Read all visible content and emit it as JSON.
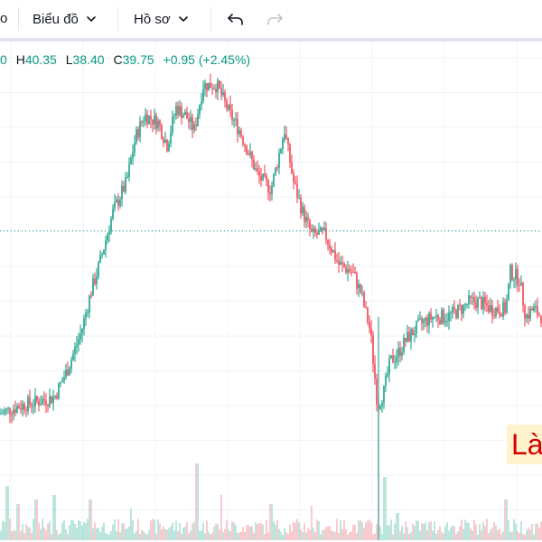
{
  "toolbar": {
    "cut_fragment": "o",
    "chart_menu_label": "Biểu đồ",
    "profile_menu_label": "Hồ sơ",
    "undo_icon": "undo-icon",
    "redo_icon": "redo-icon"
  },
  "legend": {
    "open_label": "",
    "open_value": "0",
    "high_label": "H",
    "high_value": "40.35",
    "low_label": "L",
    "low_value": "38.40",
    "close_label": "C",
    "close_value": "39.75",
    "change": "+0.95 (+2.45%)"
  },
  "corner_label": "Là",
  "colors": {
    "up": "#089981",
    "down": "#f23645",
    "grid": "#f0f3fa",
    "price_line": "#089981",
    "label_bg": "#fff3cd",
    "label_text": "#d50000"
  },
  "chart_data": {
    "type": "candlestick",
    "price_line": 39.75,
    "price_range": [
      24,
      50
    ],
    "trend": [
      [
        0,
        27.5
      ],
      [
        20,
        28.0
      ],
      [
        40,
        28.3
      ],
      [
        60,
        28.6
      ],
      [
        75,
        30.5
      ],
      [
        90,
        33.0
      ],
      [
        100,
        35.5
      ],
      [
        110,
        37.5
      ],
      [
        125,
        41.0
      ],
      [
        140,
        43.0
      ],
      [
        150,
        46.0
      ],
      [
        160,
        47.5
      ],
      [
        175,
        47.0
      ],
      [
        185,
        45.5
      ],
      [
        195,
        48.0
      ],
      [
        205,
        47.5
      ],
      [
        215,
        46.5
      ],
      [
        225,
        49.5
      ],
      [
        240,
        49.5
      ],
      [
        255,
        47.5
      ],
      [
        265,
        46.5
      ],
      [
        275,
        45.0
      ],
      [
        285,
        43.5
      ],
      [
        300,
        42.5
      ],
      [
        315,
        46.5
      ],
      [
        325,
        43.0
      ],
      [
        335,
        41.0
      ],
      [
        345,
        39.5
      ],
      [
        360,
        39.5
      ],
      [
        375,
        37.5
      ],
      [
        390,
        37.0
      ],
      [
        400,
        35.5
      ],
      [
        410,
        33.0
      ],
      [
        418,
        28.0
      ],
      [
        425,
        29.0
      ],
      [
        432,
        31.0
      ],
      [
        440,
        31.5
      ],
      [
        450,
        32.5
      ],
      [
        465,
        33.5
      ],
      [
        480,
        34.0
      ],
      [
        495,
        34.0
      ],
      [
        510,
        34.5
      ],
      [
        520,
        35.0
      ],
      [
        530,
        35.0
      ],
      [
        545,
        34.5
      ],
      [
        560,
        34.5
      ],
      [
        565,
        37.0
      ],
      [
        575,
        36.5
      ],
      [
        582,
        34.0
      ],
      [
        590,
        34.5
      ],
      [
        600,
        34.0
      ]
    ],
    "volume_spikes": [
      [
        8,
        60
      ],
      [
        20,
        40
      ],
      [
        40,
        45
      ],
      [
        60,
        50
      ],
      [
        100,
        45
      ],
      [
        145,
        35
      ],
      [
        218,
        85
      ],
      [
        245,
        50
      ],
      [
        300,
        40
      ],
      [
        345,
        38
      ],
      [
        419,
        160
      ],
      [
        426,
        70
      ],
      [
        440,
        30
      ],
      [
        560,
        45
      ]
    ]
  }
}
